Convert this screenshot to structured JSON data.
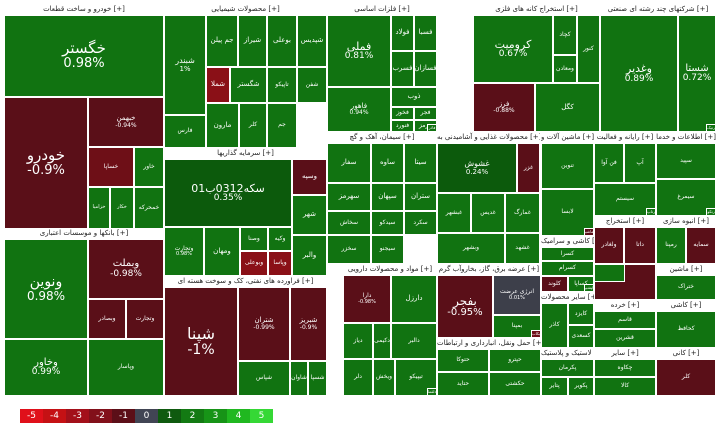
{
  "chart_data": {
    "type": "treemap",
    "legend_scale": [
      {
        "label": "-5",
        "color": "#e0101a"
      },
      {
        "label": "-4",
        "color": "#c51114"
      },
      {
        "label": "-3",
        "color": "#a3101a"
      },
      {
        "label": "-2",
        "color": "#82101a"
      },
      {
        "label": "-1",
        "color": "#5c0f18"
      },
      {
        "label": "0",
        "color": "#414554"
      },
      {
        "label": "1",
        "color": "#0f5a0f"
      },
      {
        "label": "2",
        "color": "#137a13"
      },
      {
        "label": "3",
        "color": "#179417"
      },
      {
        "label": "4",
        "color": "#20b820"
      },
      {
        "label": "5",
        "color": "#35d835"
      }
    ],
    "sectors": [
      {
        "id": "s1",
        "name": "خودرو و ساخت قطعات [+]",
        "tiles": [
          {
            "symbol": "خگستر",
            "value": "0.98%",
            "change": 0.98
          },
          {
            "symbol": "خودرو",
            "value": "-0.9%",
            "change": -0.9
          },
          {
            "symbol": "خبهمن",
            "value": "-0.94%",
            "change": -0.94
          },
          {
            "symbol": "خساپا",
            "value": "",
            "change": -1.1
          },
          {
            "symbol": "خزامیا",
            "value": "",
            "change": 0.9
          },
          {
            "symbol": "خکار",
            "value": "",
            "change": 1.2
          },
          {
            "symbol": "خاور",
            "value": "",
            "change": 1.0
          },
          {
            "symbol": "خمحرکه",
            "value": "",
            "change": 0.8
          }
        ]
      },
      {
        "id": "s2",
        "name": "بانکها و موسسات اعتباری [+]",
        "tiles": [
          {
            "symbol": "ونوین",
            "value": "0.98%",
            "change": 0.98
          },
          {
            "symbol": "وبملت",
            "value": "-0.98%",
            "change": -0.98
          },
          {
            "symbol": "وخاور",
            "value": "0.99%",
            "change": 0.99
          },
          {
            "symbol": "وبصادر",
            "value": "",
            "change": -0.9
          },
          {
            "symbol": "وتجارت",
            "value": "",
            "change": -0.95
          },
          {
            "symbol": "وپاسار",
            "value": "",
            "change": 0.8
          }
        ]
      },
      {
        "id": "s3",
        "name": "محصولات شیمیایی [+]",
        "tiles": [
          {
            "symbol": "شبندر",
            "value": "1%",
            "change": 1.0
          },
          {
            "symbol": "جم پیلن",
            "value": "",
            "change": 1.1
          },
          {
            "symbol": "شیراز",
            "value": "",
            "change": 1.0
          },
          {
            "symbol": "بوعلی",
            "value": "",
            "change": 0.9
          },
          {
            "symbol": "شپدیس",
            "value": "",
            "change": 1.2
          },
          {
            "symbol": "تاپیکو",
            "value": "",
            "change": 1.0
          },
          {
            "symbol": "شملا",
            "value": "",
            "change": -2.5
          },
          {
            "symbol": "شگستر",
            "value": "",
            "change": 1.0
          },
          {
            "symbol": "شفن",
            "value": "",
            "change": 0.9
          },
          {
            "symbol": "جم",
            "value": "",
            "change": 1.1
          },
          {
            "symbol": "مارون",
            "value": "",
            "change": 1.0
          },
          {
            "symbol": "کلر",
            "value": "",
            "change": 0.9
          },
          {
            "symbol": "فارس",
            "value": "",
            "change": 1.3
          }
        ]
      },
      {
        "id": "s4",
        "name": "سرمایه گذاریها [+]",
        "tiles": [
          {
            "symbol": "سکه0312ب01",
            "value": "0.35%",
            "change": 0.35
          },
          {
            "symbol": "وتجارت",
            "value": "0.98%",
            "change": 0.98
          },
          {
            "symbol": "وسپه",
            "value": "",
            "change": -0.7
          },
          {
            "symbol": "ومهان",
            "value": "",
            "change": 0.9
          },
          {
            "symbol": "وصنا",
            "value": "",
            "change": 0.9
          },
          {
            "symbol": "وبوعلی",
            "value": "",
            "change": -2.0
          },
          {
            "symbol": "وپاسا",
            "value": "",
            "change": -2.2
          },
          {
            "symbol": "شهر",
            "value": "",
            "change": 1.0
          },
          {
            "symbol": "وکیه",
            "value": "",
            "change": 0.8
          },
          {
            "symbol": "والبر",
            "value": "",
            "change": 1.0
          }
        ]
      },
      {
        "id": "s5",
        "name": "فراورده های نفتی، کک و سوخت هسته ای [+]",
        "tiles": [
          {
            "symbol": "شپنا",
            "value": "-1%",
            "change": -1.0
          },
          {
            "symbol": "شتران",
            "value": "-0.99%",
            "change": -0.99
          },
          {
            "symbol": "شبریز",
            "value": "-0.9%",
            "change": -0.9
          },
          {
            "symbol": "شپاس",
            "value": "",
            "change": 1.0
          },
          {
            "symbol": "شاوان",
            "value": "",
            "change": 1.0
          },
          {
            "symbol": "شسپا",
            "value": "",
            "change": 0.9
          }
        ]
      },
      {
        "id": "s6",
        "name": "فلزات اساسی [+]",
        "tiles": [
          {
            "symbol": "فملی",
            "value": "0.81%",
            "change": 0.81
          },
          {
            "symbol": "فولاد",
            "value": "",
            "change": 0.9
          },
          {
            "symbol": "فسبا",
            "value": "",
            "change": 1.0
          },
          {
            "symbol": "فسرب",
            "value": "",
            "change": 0.9
          },
          {
            "symbol": "فسازان",
            "value": "",
            "change": 1.0
          },
          {
            "symbol": "ذوب",
            "value": "",
            "change": 1.0
          },
          {
            "symbol": "فاهور",
            "value": "0.94%",
            "change": 0.94
          },
          {
            "symbol": "فخوز",
            "value": "",
            "change": 0.9
          },
          {
            "symbol": "فجر",
            "value": "",
            "change": 1.0
          },
          {
            "symbol": "فنورد",
            "value": "",
            "change": 1.0
          },
          {
            "symbol": "هرمز",
            "value": "",
            "change": 1.0
          },
          {
            "symbol": "فولای",
            "value": "",
            "change": 0.8
          },
          {
            "symbol": "فزرین",
            "value": "",
            "change": 1.0
          },
          {
            "symbol": "فاذر",
            "value": "",
            "change": 0.9
          }
        ]
      },
      {
        "id": "s7",
        "name": "استخراج کانه های فلزی [+]",
        "tiles": [
          {
            "symbol": "کرومیت",
            "value": "0.67%",
            "change": 0.67
          },
          {
            "symbol": "فرز",
            "value": "-0.88%",
            "change": -0.88
          },
          {
            "symbol": "کگل",
            "value": "",
            "change": 1.0
          },
          {
            "symbol": "کنور",
            "value": "",
            "change": 1.0
          },
          {
            "symbol": "ومعادن",
            "value": "",
            "change": 0.9
          },
          {
            "symbol": "کچاد",
            "value": "",
            "change": 1.0
          }
        ]
      },
      {
        "id": "s8",
        "name": "شرکتهای چند رشته ای صنعتی [+]",
        "tiles": [
          {
            "symbol": "وغدیر",
            "value": "0.89%",
            "change": 0.89
          },
          {
            "symbol": "شستا",
            "value": "0.72%",
            "change": 0.72
          },
          {
            "symbol": "رنیک",
            "value": "",
            "change": 1.0
          }
        ]
      },
      {
        "id": "s9",
        "name": "سیمان، آهک و گچ [+]",
        "tiles": [
          {
            "symbol": "سفار",
            "value": "",
            "change": 1.0
          },
          {
            "symbol": "ساوه",
            "value": "",
            "change": 1.0
          },
          {
            "symbol": "سیتا",
            "value": "",
            "change": 0.9
          },
          {
            "symbol": "سهرمز",
            "value": "",
            "change": 0.9
          },
          {
            "symbol": "سپهان",
            "value": "",
            "change": 1.0
          },
          {
            "symbol": "ستران",
            "value": "",
            "change": 1.0
          },
          {
            "symbol": "سخاش",
            "value": "",
            "change": 0.8
          },
          {
            "symbol": "سیدکو",
            "value": "",
            "change": 1.0
          },
          {
            "symbol": "سکرد",
            "value": "",
            "change": 0.9
          },
          {
            "symbol": "سیجنو",
            "value": "",
            "change": 0.9
          },
          {
            "symbol": "سخزر",
            "value": "",
            "change": 1.0
          }
        ]
      },
      {
        "id": "s10",
        "name": "محصولات غذایی و آشامیدنی به [+]",
        "tiles": [
          {
            "symbol": "غشوش",
            "value": "0.24%",
            "change": 0.24
          },
          {
            "symbol": "غزر",
            "value": "",
            "change": -0.9
          },
          {
            "symbol": "غبشهر",
            "value": "",
            "change": 1.0
          },
          {
            "symbol": "غدیس",
            "value": "",
            "change": 1.0
          },
          {
            "symbol": "غمارگ",
            "value": "",
            "change": 0.9
          },
          {
            "symbol": "غشهد",
            "value": "",
            "change": 0.9
          },
          {
            "symbol": "وبشهر",
            "value": "",
            "change": 1.0
          }
        ]
      },
      {
        "id": "s11",
        "name": "مواد و محصولات دارویی [+]",
        "tiles": [
          {
            "symbol": "دارا",
            "value": "-0.98%",
            "change": -0.98
          },
          {
            "symbol": "دارزل",
            "value": "",
            "change": 0.9
          },
          {
            "symbol": "دالبر",
            "value": "",
            "change": 1.0
          },
          {
            "symbol": "دکیمی",
            "value": "",
            "change": 0.9
          },
          {
            "symbol": "دیاز",
            "value": "",
            "change": 1.0
          },
          {
            "symbol": "دلر",
            "value": "",
            "change": 1.0
          },
          {
            "symbol": "ویخش",
            "value": "",
            "change": 0.9
          },
          {
            "symbol": "تیپیکو",
            "value": "",
            "change": 1.0
          },
          {
            "symbol": "دیران",
            "value": "",
            "change": 0.9
          },
          {
            "symbol": "دسبحان",
            "value": "",
            "change": -0.9
          },
          {
            "symbol": "دجابر",
            "value": "",
            "change": 1.0
          },
          {
            "symbol": "دلقما",
            "value": "",
            "change": 1.0
          }
        ]
      },
      {
        "id": "s12",
        "name": "عرضه برق، گاز، بخاروآب گرم [+]",
        "tiles": [
          {
            "symbol": "بفجر",
            "value": "-0.95%",
            "change": -0.95
          },
          {
            "symbol": "انرژی عرضت",
            "value": "0.01%",
            "change": 0.01
          },
          {
            "symbol": "بمپنا",
            "value": "",
            "change": 1.0
          },
          {
            "symbol": "بکاب",
            "value": "",
            "change": -1.2
          }
        ]
      },
      {
        "id": "s13",
        "name": "حمل ونقل، انبارداری و ارتباطات [+]",
        "tiles": [
          {
            "symbol": "حتوکا",
            "value": "",
            "change": 1.0
          },
          {
            "symbol": "حپترو",
            "value": "",
            "change": 1.0
          },
          {
            "symbol": "حتاید",
            "value": "",
            "change": 0.9
          },
          {
            "symbol": "حکشتی",
            "value": "",
            "change": 1.0
          }
        ]
      },
      {
        "id": "s14",
        "name": "لاستیک و پلاستیک [+]",
        "tiles": [
          {
            "symbol": "پکرمان",
            "value": "",
            "change": 1.0
          },
          {
            "symbol": "پتایر",
            "value": "",
            "change": 1.0
          },
          {
            "symbol": "پکویر",
            "value": "",
            "change": 1.0
          }
        ]
      },
      {
        "id": "s15",
        "name": "کاشی و سرامیک [+]",
        "tiles": [
          {
            "symbol": "کسرا",
            "value": "",
            "change": 1.0
          },
          {
            "symbol": "کسرام",
            "value": "",
            "change": 1.0
          },
          {
            "symbol": "کلوند",
            "value": "",
            "change": -1.0
          },
          {
            "symbol": "کساپا",
            "value": "",
            "change": 0.9
          },
          {
            "symbol": "کپشیر",
            "value": "",
            "change": 0.9
          }
        ]
      },
      {
        "id": "s16",
        "name": "سایر محصولات [+]",
        "tiles": [
          {
            "symbol": "کاذر",
            "value": "",
            "change": 1.0
          },
          {
            "symbol": "کایزد",
            "value": "",
            "change": 1.0
          },
          {
            "symbol": "کسعدی",
            "value": "",
            "change": 0.8
          }
        ]
      },
      {
        "id": "s17",
        "name": "رایانه و فعالیت [+]",
        "tiles": [
          {
            "symbol": "فن آوا",
            "value": "",
            "change": 1.0
          },
          {
            "symbol": "آپ",
            "value": "",
            "change": 1.0
          },
          {
            "symbol": "سیستم",
            "value": "",
            "change": 0.9
          },
          {
            "symbol": "رتاپ",
            "value": "",
            "change": 1.0
          }
        ]
      },
      {
        "id": "s18",
        "name": "اطلاعات و خدما [+]",
        "tiles": [
          {
            "symbol": "سپید",
            "value": "",
            "change": 1.0
          },
          {
            "symbol": "سیمرغ",
            "value": "",
            "change": 1.0
          },
          {
            "symbol": "رتکو",
            "value": "",
            "change": 0.9
          }
        ]
      },
      {
        "id": "s19",
        "name": "ماشین آلات و [+]",
        "tiles": [
          {
            "symbol": "تنوین",
            "value": "",
            "change": 1.0
          },
          {
            "symbol": "لابسا",
            "value": "",
            "change": 1.0
          },
          {
            "symbol": "کماشین",
            "value": "",
            "change": -1.0
          }
        ]
      },
      {
        "id": "s20",
        "name": "استخراج [+]",
        "tiles": [
          {
            "symbol": "ولغادر",
            "value": "",
            "change": -1.0
          },
          {
            "symbol": "داتا",
            "value": "",
            "change": -1.0
          }
        ]
      },
      {
        "id": "s21",
        "name": "انبوه سازی [+]",
        "tiles": [
          {
            "symbol": "رمپنا",
            "value": "",
            "change": 1.0
          },
          {
            "symbol": "سمایه",
            "value": "",
            "change": -1.0
          }
        ]
      },
      {
        "id": "s22",
        "name": "خرده [+]",
        "tiles": [
          {
            "symbol": "قاسم",
            "value": "",
            "change": 1.0
          },
          {
            "symbol": "قشرین",
            "value": "",
            "change": 1.0
          }
        ]
      },
      {
        "id": "s23",
        "name": "سایر [+]",
        "tiles": [
          {
            "symbol": "چکاوه",
            "value": "",
            "change": 1.0
          },
          {
            "symbol": "کالا",
            "value": "",
            "change": 1.0
          }
        ]
      },
      {
        "id": "s24",
        "name": "ماشین [+]",
        "tiles": [
          {
            "symbol": "ختراک",
            "value": "",
            "change": 1.0
          }
        ]
      },
      {
        "id": "s25",
        "name": "کاشی [+]",
        "tiles": [
          {
            "symbol": "کحافظ",
            "value": "",
            "change": 1.0
          }
        ]
      },
      {
        "id": "s26",
        "name": "کانی [+]",
        "tiles": [
          {
            "symbol": "کلر",
            "value": "",
            "change": -1.0
          }
        ]
      }
    ]
  }
}
